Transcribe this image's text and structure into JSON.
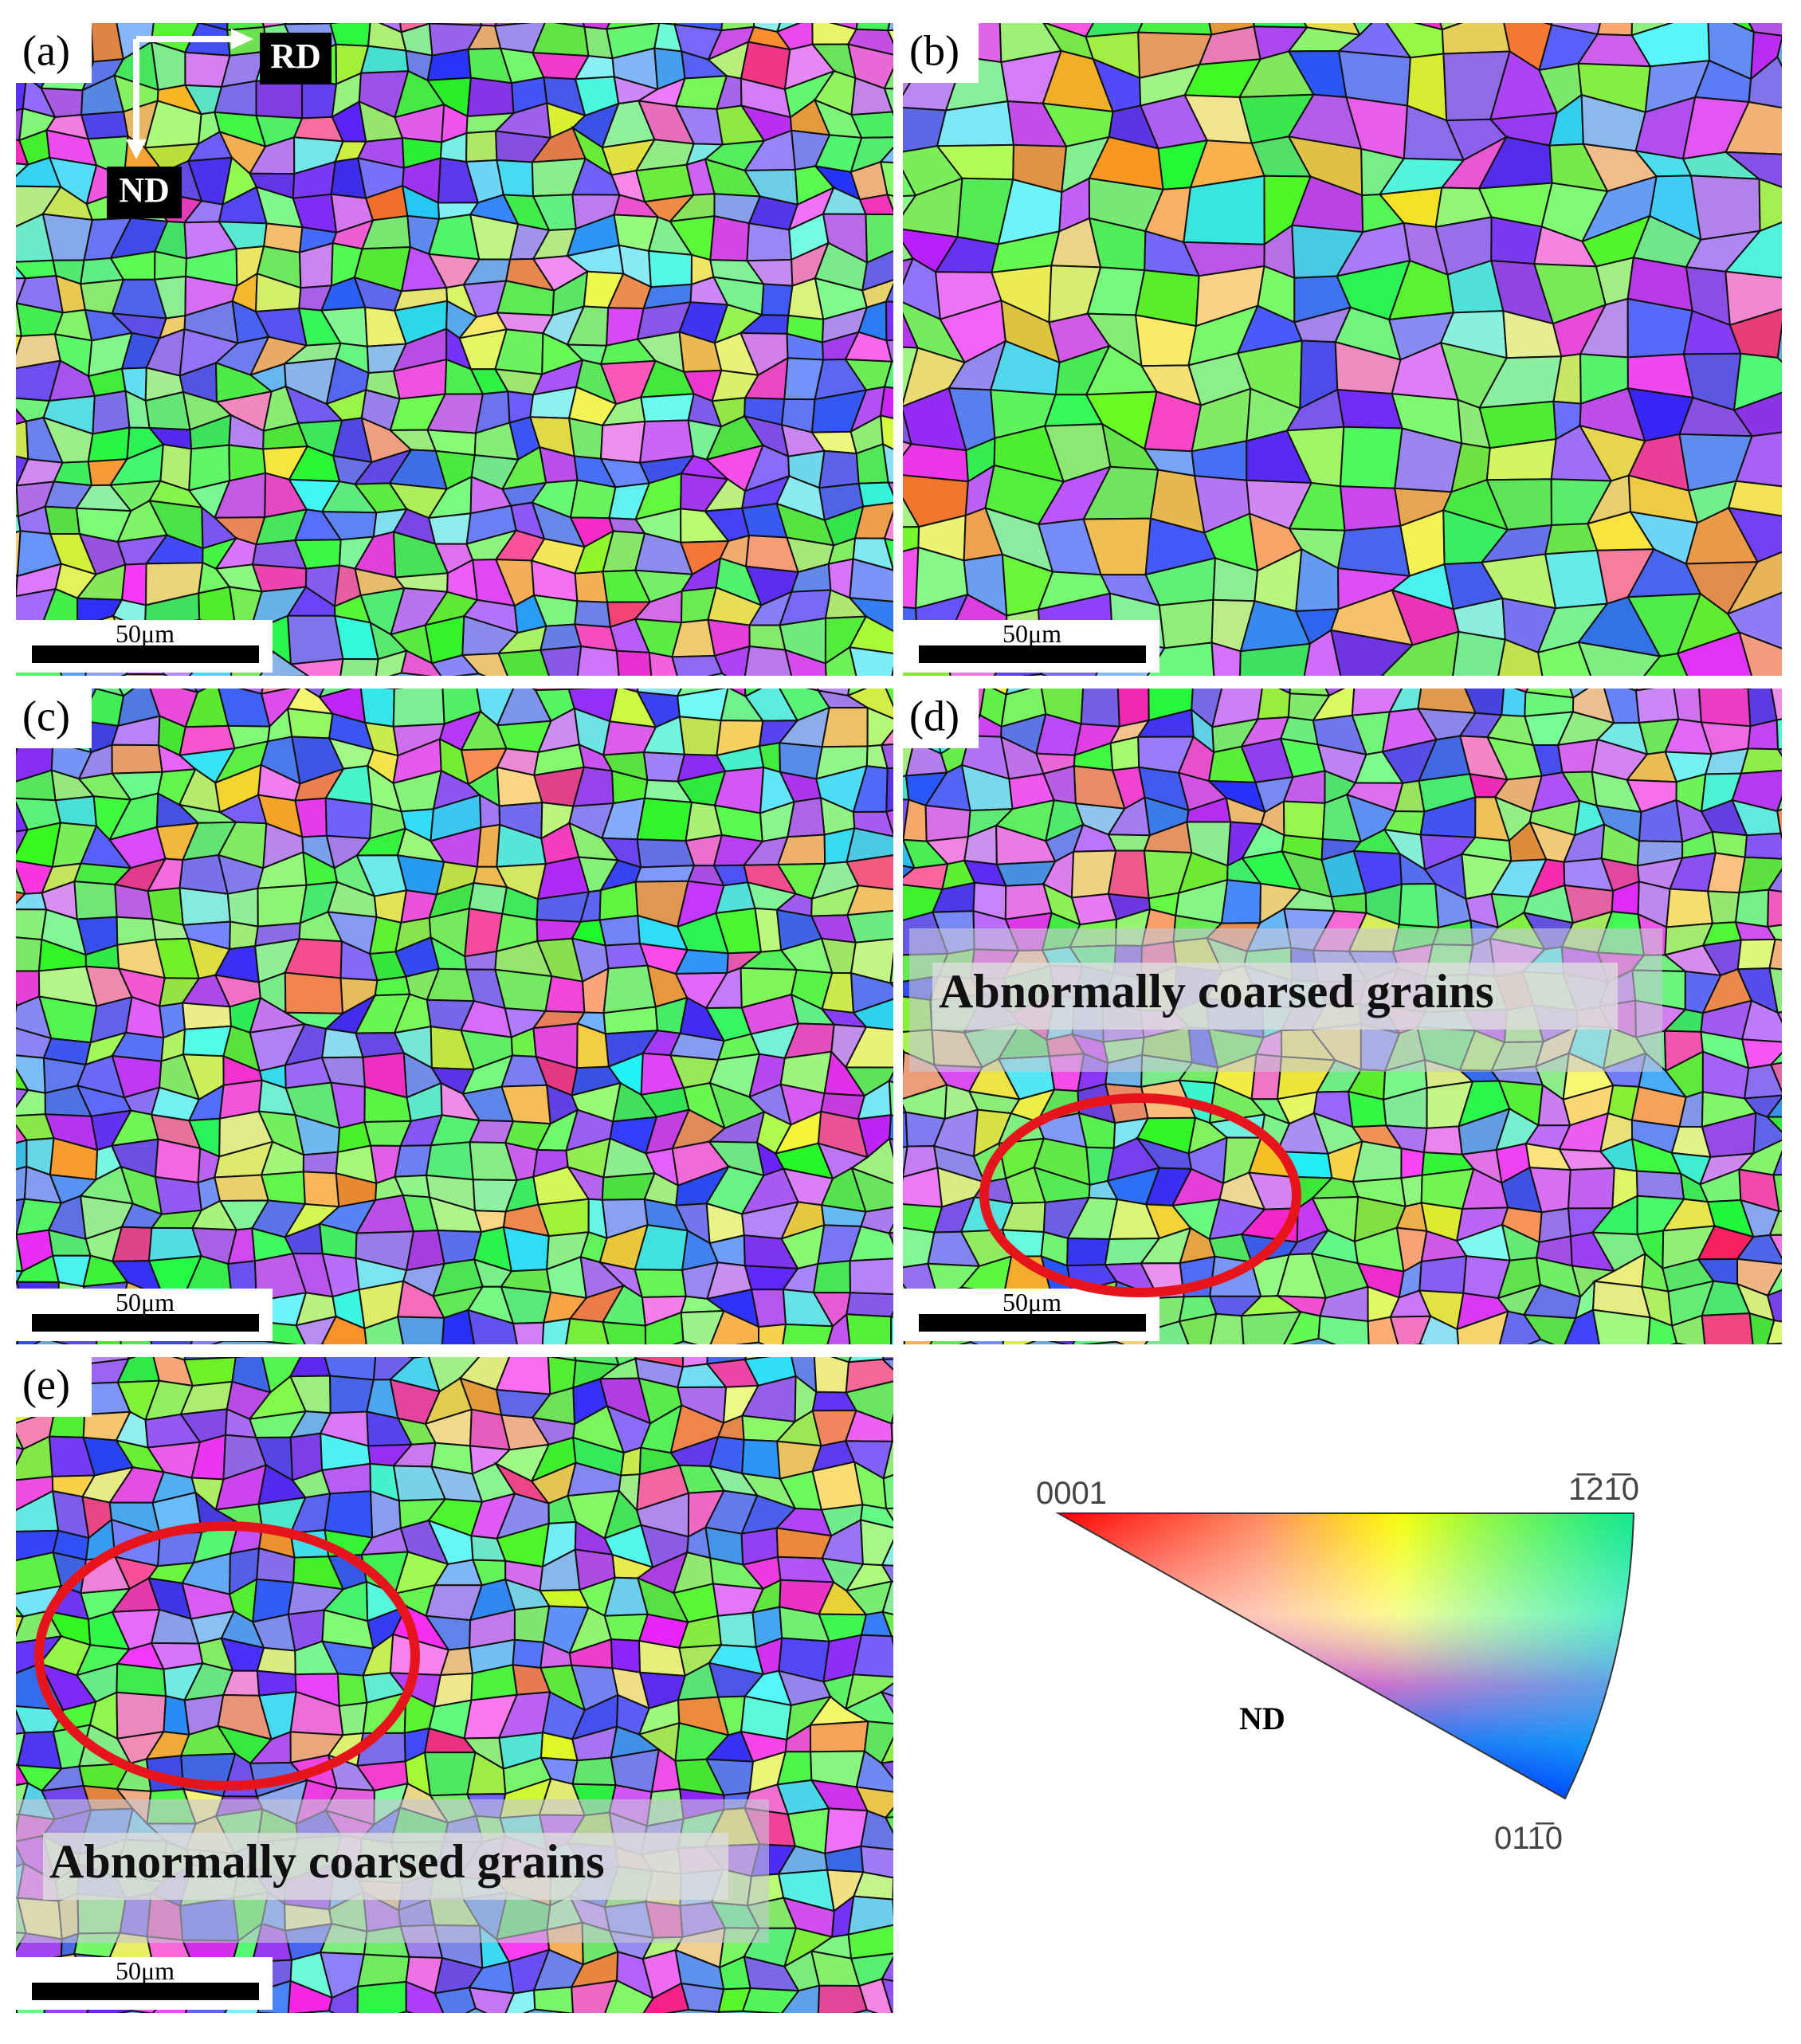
{
  "panels": [
    {
      "label": "(a)",
      "scale_bar": "50μm"
    },
    {
      "label": "(b)",
      "scale_bar": "50μm"
    },
    {
      "label": "(c)",
      "scale_bar": "50μm"
    },
    {
      "label": "(d)",
      "scale_bar": "50μm",
      "annotation": "Abnormally coarsed grains"
    },
    {
      "label": "(e)",
      "scale_bar": "50μm",
      "annotation": "Abnormally coarsed grains"
    }
  ],
  "directions": {
    "rd": "RD",
    "nd": "ND"
  },
  "legend": {
    "corner_top_left": "0001",
    "corner_top_right": "1̅21̅0",
    "corner_bottom": "011̅0",
    "direction": "ND"
  }
}
